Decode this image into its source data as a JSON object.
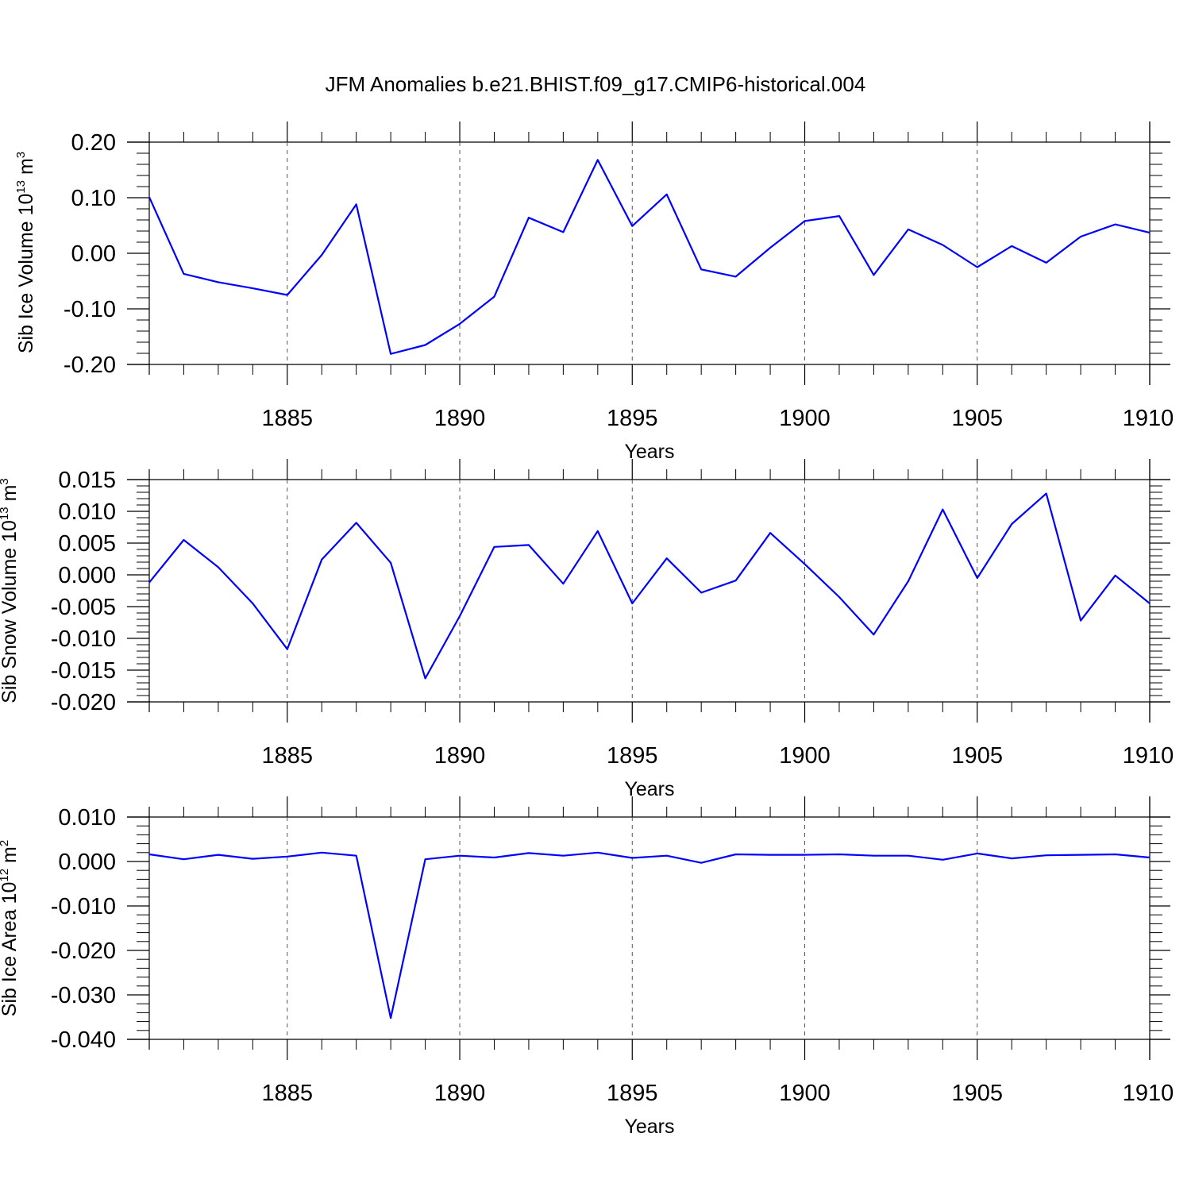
{
  "title": "JFM Anomalies b.e21.BHIST.f09_g17.CMIP6-historical.004",
  "line_color": "#0000ff",
  "chart_data": [
    {
      "type": "line",
      "title": "JFM Anomalies b.e21.BHIST.f09_g17.CMIP6-historical.004",
      "xlabel": "Years",
      "ylabel": {
        "text": "Sib Ice Volume 10",
        "exp1": "13",
        "mid": " m",
        "exp2": "3"
      },
      "xlim": [
        1881,
        1910
      ],
      "ylim": [
        -0.2,
        0.2
      ],
      "yticks": [
        -0.2,
        -0.1,
        0.0,
        0.1,
        0.2
      ],
      "ytick_labels": [
        "-0.20",
        "-0.10",
        "0.00",
        "0.10",
        "0.20"
      ],
      "xticks": [
        1885,
        1890,
        1895,
        1900,
        1905,
        1910
      ],
      "xtick_labels": [
        "1885",
        "1890",
        "1895",
        "1900",
        "1905",
        "1910"
      ],
      "grid": "vertical dashed at major x ticks",
      "series": [
        {
          "name": "Sib Ice Volume",
          "x": [
            1881,
            1882,
            1883,
            1884,
            1885,
            1886,
            1887,
            1888,
            1889,
            1890,
            1891,
            1892,
            1893,
            1894,
            1895,
            1896,
            1897,
            1898,
            1899,
            1900,
            1901,
            1902,
            1903,
            1904,
            1905,
            1906,
            1907,
            1908,
            1909,
            1910
          ],
          "values": [
            0.101,
            -0.037,
            -0.052,
            -0.063,
            -0.075,
            -0.003,
            0.088,
            -0.181,
            -0.165,
            -0.127,
            -0.078,
            0.064,
            0.038,
            0.168,
            0.049,
            0.106,
            -0.029,
            -0.042,
            0.01,
            0.058,
            0.067,
            -0.039,
            0.043,
            0.015,
            -0.025,
            0.013,
            -0.017,
            0.03,
            0.052,
            0.037
          ]
        }
      ]
    },
    {
      "type": "line",
      "xlabel": "Years",
      "ylabel": {
        "text": "Sib Snow Volume 10",
        "exp1": "13",
        "mid": " m",
        "exp2": "3"
      },
      "xlim": [
        1881,
        1910
      ],
      "ylim": [
        -0.02,
        0.015
      ],
      "yticks": [
        -0.02,
        -0.015,
        -0.01,
        -0.005,
        0.0,
        0.005,
        0.01,
        0.015
      ],
      "ytick_labels": [
        "-0.020",
        "-0.015",
        "-0.010",
        "-0.005",
        "0.000",
        "0.005",
        "0.010",
        "0.015"
      ],
      "xticks": [
        1885,
        1890,
        1895,
        1900,
        1905,
        1910
      ],
      "xtick_labels": [
        "1885",
        "1890",
        "1895",
        "1900",
        "1905",
        "1910"
      ],
      "grid": "vertical dashed at major x ticks",
      "series": [
        {
          "name": "Sib Snow Volume",
          "x": [
            1881,
            1882,
            1883,
            1884,
            1885,
            1886,
            1887,
            1888,
            1889,
            1890,
            1891,
            1892,
            1893,
            1894,
            1895,
            1896,
            1897,
            1898,
            1899,
            1900,
            1901,
            1902,
            1903,
            1904,
            1905,
            1906,
            1907,
            1908,
            1909,
            1910
          ],
          "values": [
            -0.0012,
            0.0055,
            0.0012,
            -0.0045,
            -0.0117,
            0.0024,
            0.0082,
            0.0019,
            -0.0163,
            -0.0065,
            0.0044,
            0.0047,
            -0.0014,
            0.0069,
            -0.0045,
            0.0026,
            -0.0028,
            -0.0009,
            0.0066,
            0.0017,
            -0.0035,
            -0.0094,
            -0.001,
            0.0103,
            -0.0005,
            0.008,
            0.0128,
            -0.0072,
            -0.0001,
            -0.0045
          ]
        }
      ]
    },
    {
      "type": "line",
      "xlabel": "Years",
      "ylabel": {
        "text": "Sib Ice Area 10",
        "exp1": "12",
        "mid": " m",
        "exp2": "2"
      },
      "xlim": [
        1881,
        1910
      ],
      "ylim": [
        -0.04,
        0.01
      ],
      "yticks": [
        -0.04,
        -0.03,
        -0.02,
        -0.01,
        0.0,
        0.01
      ],
      "ytick_labels": [
        "-0.040",
        "-0.030",
        "-0.020",
        "-0.010",
        "0.000",
        "0.010"
      ],
      "xticks": [
        1885,
        1890,
        1895,
        1900,
        1905,
        1910
      ],
      "xtick_labels": [
        "1885",
        "1890",
        "1895",
        "1900",
        "1905",
        "1910"
      ],
      "grid": "vertical dashed at major x ticks",
      "series": [
        {
          "name": "Sib Ice Area",
          "x": [
            1881,
            1882,
            1883,
            1884,
            1885,
            1886,
            1887,
            1888,
            1889,
            1890,
            1891,
            1892,
            1893,
            1894,
            1895,
            1896,
            1897,
            1898,
            1899,
            1900,
            1901,
            1902,
            1903,
            1904,
            1905,
            1906,
            1907,
            1908,
            1909,
            1910
          ],
          "values": [
            0.0016,
            0.0005,
            0.0015,
            0.0006,
            0.0011,
            0.002,
            0.0013,
            -0.0352,
            0.0005,
            0.0013,
            0.0009,
            0.0019,
            0.0013,
            0.002,
            0.0008,
            0.0013,
            -0.0003,
            0.0016,
            0.0015,
            0.0015,
            0.0016,
            0.0013,
            0.0013,
            0.0004,
            0.0018,
            0.0007,
            0.0014,
            0.0015,
            0.0016,
            0.0009
          ]
        }
      ]
    }
  ]
}
